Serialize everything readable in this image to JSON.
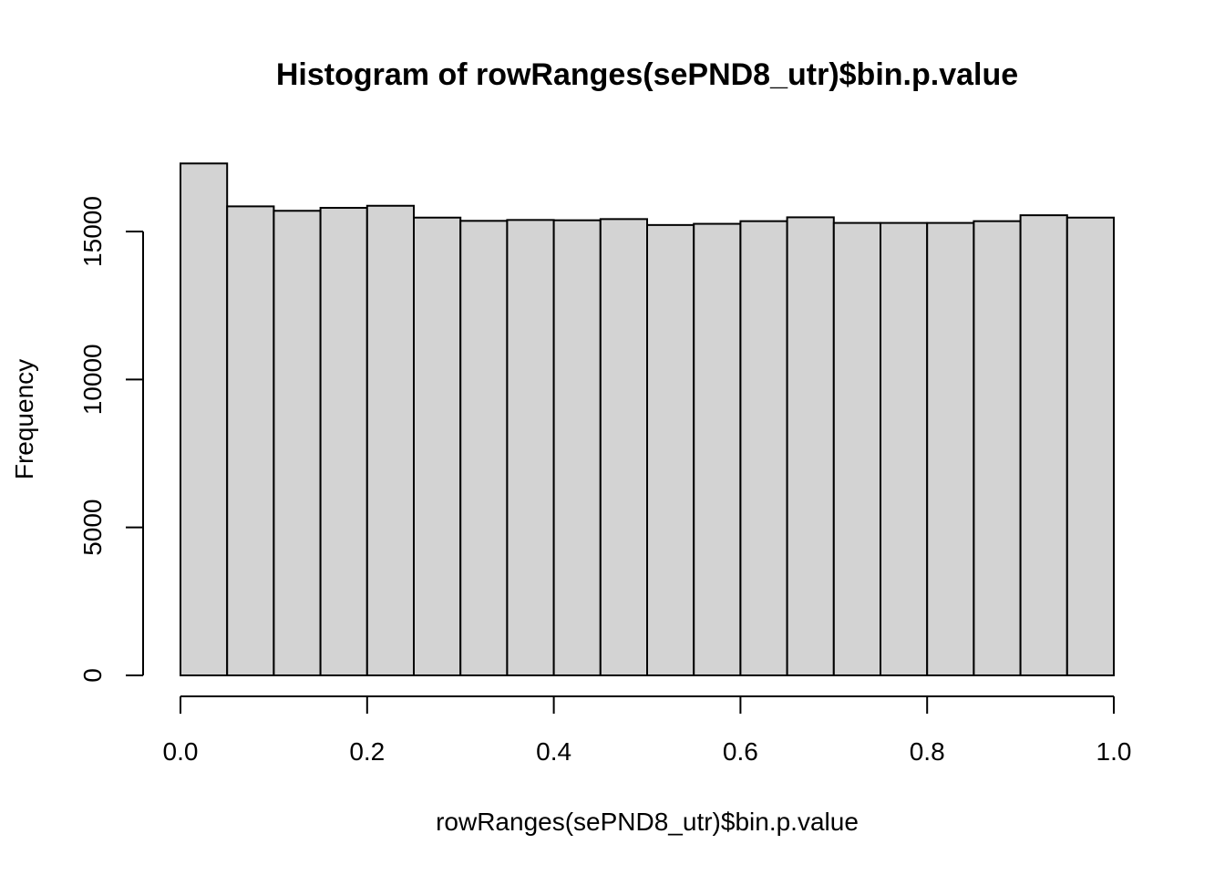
{
  "chart_data": {
    "type": "bar",
    "title": "Histogram of rowRanges(sePND8_utr)$bin.p.value",
    "xlabel": "rowRanges(sePND8_utr)$bin.p.value",
    "ylabel": "Frequency",
    "xlim": [
      0,
      1
    ],
    "ylim": [
      0,
      17300
    ],
    "bin_edges": [
      0.0,
      0.05,
      0.1,
      0.15,
      0.2,
      0.25,
      0.3,
      0.35,
      0.4,
      0.45,
      0.5,
      0.55,
      0.6,
      0.65,
      0.7,
      0.75,
      0.8,
      0.85,
      0.9,
      0.95,
      1.0
    ],
    "values": [
      17300,
      15850,
      15700,
      15800,
      15870,
      15470,
      15360,
      15390,
      15380,
      15420,
      15220,
      15260,
      15350,
      15480,
      15290,
      15290,
      15290,
      15350,
      15550,
      15470
    ],
    "x_ticks": [
      0.0,
      0.2,
      0.4,
      0.6,
      0.8,
      1.0
    ],
    "x_tick_labels": [
      "0.0",
      "0.2",
      "0.4",
      "0.6",
      "0.8",
      "1.0"
    ],
    "y_ticks": [
      0,
      5000,
      10000,
      15000
    ],
    "y_tick_labels": [
      "0",
      "5000",
      "10000",
      "15000"
    ],
    "colors": {
      "bar_fill": "#d3d3d3",
      "bar_stroke": "#000000"
    },
    "grid": false,
    "legend": "none"
  }
}
